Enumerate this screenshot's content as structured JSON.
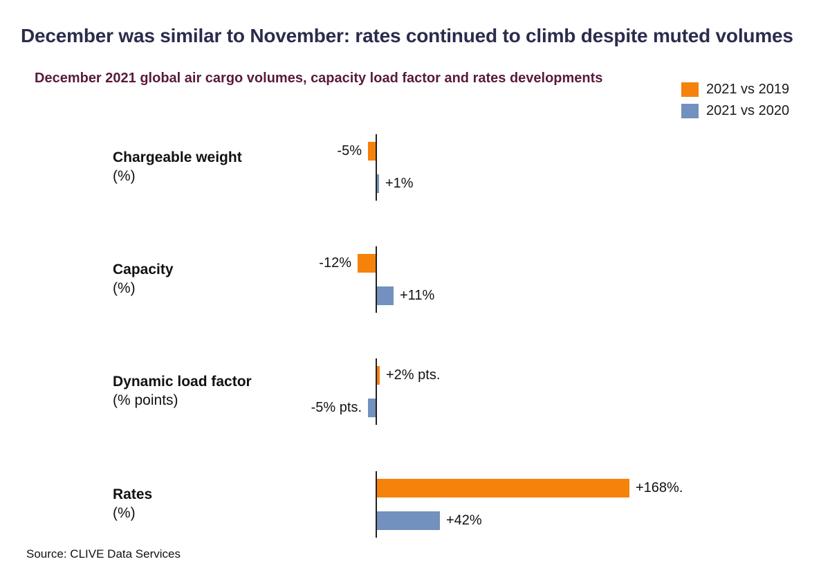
{
  "title": "December was similar to November: rates continued to climb despite muted volumes",
  "subtitle": "December 2021 global air cargo volumes, capacity load factor and rates developments",
  "source": {
    "text": "Source: CLIVE Data Services"
  },
  "legend": {
    "items": [
      {
        "label": "2021 vs 2019",
        "color": "#F5820A"
      },
      {
        "label": "2021 vs 2020",
        "color": "#7291BE"
      }
    ]
  },
  "chart_data": {
    "type": "bar",
    "orientation": "horizontal",
    "title": "December 2021 global air cargo volumes, capacity load factor and rates developments",
    "series_names": [
      "2021 vs 2019",
      "2021 vs 2020"
    ],
    "series_colors": [
      "#F5820A",
      "#7291BE"
    ],
    "baseline": 0,
    "grid": false,
    "legend_position": "top-right",
    "categories": [
      {
        "name": "Chargeable weight",
        "unit": "(%)",
        "values": [
          -5,
          1
        ],
        "value_labels": [
          "-5%",
          "+1%"
        ]
      },
      {
        "name": "Capacity",
        "unit": "(%)",
        "values": [
          -12,
          11
        ],
        "value_labels": [
          "-12%",
          "+11%"
        ]
      },
      {
        "name": "Dynamic load factor",
        "unit": "(% points)",
        "values": [
          2,
          -5
        ],
        "value_labels": [
          "+2% pts.",
          "-5% pts."
        ]
      },
      {
        "name": "Rates",
        "unit": "(%)",
        "values": [
          168,
          42
        ],
        "value_labels": [
          "+168%.",
          "+42%"
        ]
      }
    ]
  }
}
